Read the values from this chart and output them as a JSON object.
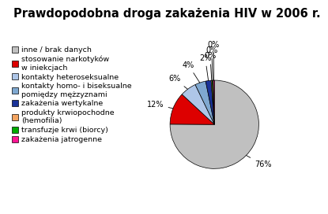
{
  "title": "Prawdopodobna droga zakażenia HIV w 2006 r.",
  "slices": [
    76,
    12,
    6,
    4,
    2,
    0.4,
    0.4,
    0.4
  ],
  "slice_labels": [
    "76%",
    "12%",
    "6%",
    "4%",
    "2%",
    "0%",
    "0%",
    "0%"
  ],
  "colors": [
    "#c0c0c0",
    "#dd0000",
    "#aec6e8",
    "#7fa8d0",
    "#1a3399",
    "#f4a460",
    "#00aa00",
    "#ff1493"
  ],
  "legend_labels": [
    "inne / brak danych",
    "stosowanie narkotyków\nw iniekcjach",
    "kontakty heteroseksualne",
    "kontakty homo- i biseksualne\npomiędzy mężzyznami",
    "zakażenia wertykalne",
    "produkty krwiopochodne\n(hemofilia)",
    "transfuzje krwi (biorcy)",
    "zakażenia jatrogenne"
  ],
  "title_fontsize": 10.5,
  "legend_fontsize": 6.8,
  "label_fontsize": 7,
  "startangle": 90,
  "background_color": "#ffffff"
}
